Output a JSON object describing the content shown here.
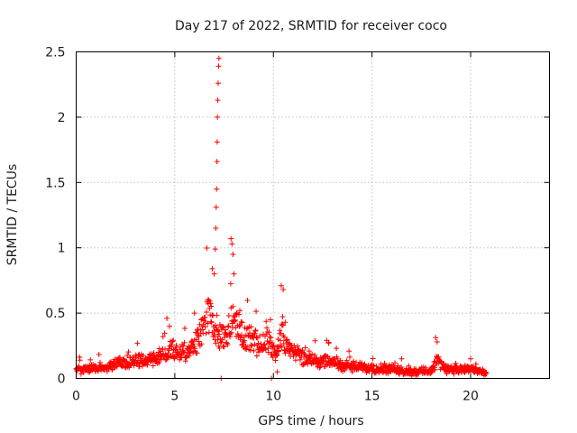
{
  "chart_data": {
    "type": "scatter",
    "title": "Day 217 of 2022, SRMTID for receiver coco",
    "xlabel": "GPS time / hours",
    "ylabel": "SRMTID / TECUs",
    "xlim": [
      0,
      24
    ],
    "ylim": [
      0,
      2.5
    ],
    "x_ticks": [
      0,
      5,
      10,
      15,
      20
    ],
    "x_tick_labels": [
      "0",
      "5",
      "10",
      "15",
      "20"
    ],
    "y_ticks": [
      0,
      0.5,
      1,
      1.5,
      2,
      2.5
    ],
    "y_tick_labels": [
      "0",
      "0.5",
      "1",
      "1.5",
      "2",
      "2.5"
    ],
    "grid": true,
    "marker": "+",
    "color": "#ff0000",
    "series": [
      {
        "name": "SRMTID",
        "anchors": [
          [
            0,
            0.07
          ],
          [
            1,
            0.08
          ],
          [
            2,
            0.11
          ],
          [
            3,
            0.13
          ],
          [
            3.8,
            0.14
          ],
          [
            4.2,
            0.18
          ],
          [
            4.8,
            0.23
          ],
          [
            5.3,
            0.2
          ],
          [
            5.8,
            0.22
          ],
          [
            6.3,
            0.32
          ],
          [
            6.7,
            0.5
          ],
          [
            7.2,
            0.35
          ],
          [
            7.6,
            0.3
          ],
          [
            7.9,
            0.5
          ],
          [
            8.3,
            0.38
          ],
          [
            8.8,
            0.28
          ],
          [
            9.3,
            0.27
          ],
          [
            9.7,
            0.3
          ],
          [
            10.1,
            0.18
          ],
          [
            10.4,
            0.33
          ],
          [
            10.9,
            0.22
          ],
          [
            11.5,
            0.16
          ],
          [
            12.2,
            0.14
          ],
          [
            13,
            0.12
          ],
          [
            14,
            0.09
          ],
          [
            15,
            0.08
          ],
          [
            16,
            0.07
          ],
          [
            17,
            0.05
          ],
          [
            18,
            0.06
          ],
          [
            18.3,
            0.14
          ],
          [
            18.7,
            0.08
          ],
          [
            19.5,
            0.06
          ],
          [
            20,
            0.08
          ],
          [
            20.5,
            0.05
          ],
          [
            20.8,
            0.03
          ]
        ],
        "spikes": [
          [
            4.6,
            0.46
          ],
          [
            4.4,
            0.32
          ],
          [
            6.0,
            0.5
          ],
          [
            6.9,
            0.84
          ],
          [
            7.0,
            0.8
          ],
          [
            7.05,
            0.99
          ],
          [
            7.08,
            1.15
          ],
          [
            7.1,
            1.31
          ],
          [
            7.12,
            1.45
          ],
          [
            7.14,
            1.66
          ],
          [
            7.15,
            1.81
          ],
          [
            7.16,
            2.0
          ],
          [
            7.18,
            2.13
          ],
          [
            7.2,
            2.26
          ],
          [
            7.22,
            2.39
          ],
          [
            7.24,
            2.45
          ],
          [
            7.35,
            0.0
          ],
          [
            7.85,
            1.07
          ],
          [
            7.9,
            1.03
          ],
          [
            7.95,
            0.95
          ],
          [
            8.0,
            0.8
          ],
          [
            8.3,
            0.52
          ],
          [
            9.85,
            0.45
          ],
          [
            9.9,
            0.0
          ],
          [
            10.4,
            0.71
          ],
          [
            10.5,
            0.68
          ],
          [
            10.6,
            0.43
          ],
          [
            10.2,
            0.05
          ],
          [
            12.8,
            0.27
          ],
          [
            18.3,
            0.28
          ],
          [
            20.0,
            0.15
          ]
        ]
      }
    ]
  }
}
